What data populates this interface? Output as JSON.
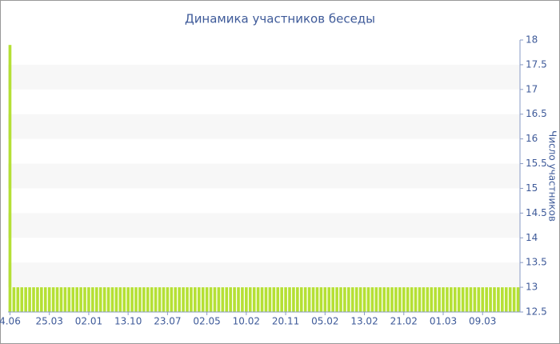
{
  "chart_data": {
    "type": "bar",
    "title": "Динамика участников беседы",
    "y_label": "Число участников",
    "categories": [
      "4.06",
      null,
      null,
      null,
      null,
      null,
      null,
      null,
      null,
      null,
      "25.03",
      null,
      null,
      null,
      null,
      null,
      null,
      null,
      null,
      null,
      "02.01",
      null,
      null,
      null,
      null,
      null,
      null,
      null,
      null,
      null,
      "13.10",
      null,
      null,
      null,
      null,
      null,
      null,
      null,
      null,
      null,
      "23.07",
      null,
      null,
      null,
      null,
      null,
      null,
      null,
      null,
      null,
      "02.05",
      null,
      null,
      null,
      null,
      null,
      null,
      null,
      null,
      null,
      "10.02",
      null,
      null,
      null,
      null,
      null,
      null,
      null,
      null,
      null,
      "20.11",
      null,
      null,
      null,
      null,
      null,
      null,
      null,
      null,
      null,
      "05.02",
      null,
      null,
      null,
      null,
      null,
      null,
      null,
      null,
      null,
      "13.02",
      null,
      null,
      null,
      null,
      null,
      null,
      null,
      null,
      null,
      "21.02",
      null,
      null,
      null,
      null,
      null,
      null,
      null,
      null,
      null,
      "01.03",
      null,
      null,
      null,
      null,
      null,
      null,
      null,
      null,
      null,
      "09.03",
      null,
      null,
      null,
      null,
      null,
      null,
      null,
      null,
      null
    ],
    "values": [
      17.9,
      13,
      13,
      13,
      13,
      13,
      13,
      13,
      13,
      13,
      13,
      13,
      13,
      13,
      13,
      13,
      13,
      13,
      13,
      13,
      13,
      13,
      13,
      13,
      13,
      13,
      13,
      13,
      13,
      13,
      13,
      13,
      13,
      13,
      13,
      13,
      13,
      13,
      13,
      13,
      13,
      13,
      13,
      13,
      13,
      13,
      13,
      13,
      13,
      13,
      13,
      13,
      13,
      13,
      13,
      13,
      13,
      13,
      13,
      13,
      13,
      13,
      13,
      13,
      13,
      13,
      13,
      13,
      13,
      13,
      13,
      13,
      13,
      13,
      13,
      13,
      13,
      13,
      13,
      13,
      13,
      13,
      13,
      13,
      13,
      13,
      13,
      13,
      13,
      13,
      13,
      13,
      13,
      13,
      13,
      13,
      13,
      13,
      13,
      13,
      13,
      13,
      13,
      13,
      13,
      13,
      13,
      13,
      13,
      13,
      13,
      13,
      13,
      13,
      13,
      13,
      13,
      13,
      13,
      13,
      13,
      13,
      13,
      13,
      13,
      13,
      13,
      13,
      13,
      13
    ],
    "color": "#b5e035",
    "ylim": [
      12.5,
      18
    ],
    "yticks": [
      12.5,
      13,
      13.5,
      14,
      14.5,
      15,
      15.5,
      16,
      16.5,
      17,
      17.5,
      18
    ],
    "y_axis_side": "right",
    "grid": "bands"
  }
}
